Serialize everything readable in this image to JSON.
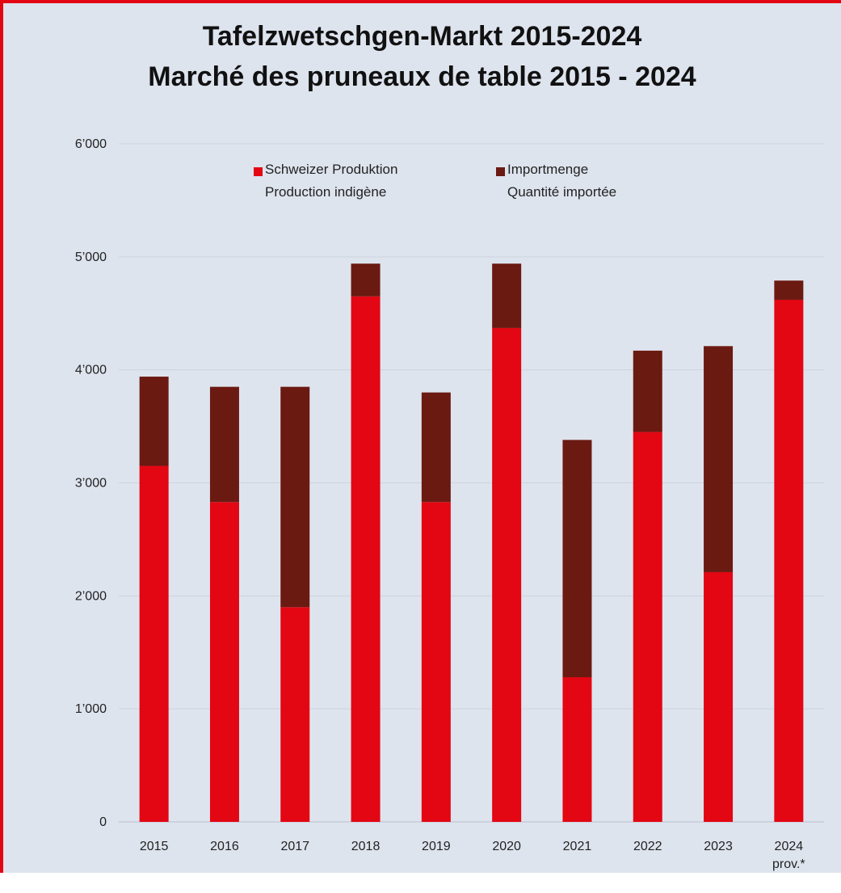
{
  "chart_data": {
    "type": "stacked_bar",
    "title": "Tafelzwetschgen-Markt 2015-2024",
    "subtitle": "Marché des pruneaux de table 2015 - 2024",
    "categories": [
      "2015",
      "2016",
      "2017",
      "2018",
      "2019",
      "2020",
      "2021",
      "2022",
      "2023",
      "2024 prov.*"
    ],
    "series": [
      {
        "name": "Schweizer Produktion\nProduction indigène",
        "color": "#e30613",
        "values": [
          3150,
          2830,
          1900,
          4650,
          2830,
          4370,
          1280,
          3450,
          2210,
          4620
        ]
      },
      {
        "name": "Importmenge\nQuantité importée",
        "color": "#6b1a12",
        "values": [
          790,
          1020,
          1950,
          290,
          970,
          570,
          2100,
          720,
          2000,
          170
        ]
      }
    ],
    "ylim": [
      0,
      6000
    ],
    "yticks": [
      0,
      {
        "value": 1000,
        "label": "1’000"
      },
      {
        "value": 2000,
        "label": "2’000"
      },
      {
        "value": 3000,
        "label": "3’000"
      },
      {
        "value": 4000,
        "label": "4’000"
      },
      {
        "value": 5000,
        "label": "5’000"
      },
      {
        "value": 6000,
        "label": "6’000"
      }
    ],
    "grid": true
  }
}
